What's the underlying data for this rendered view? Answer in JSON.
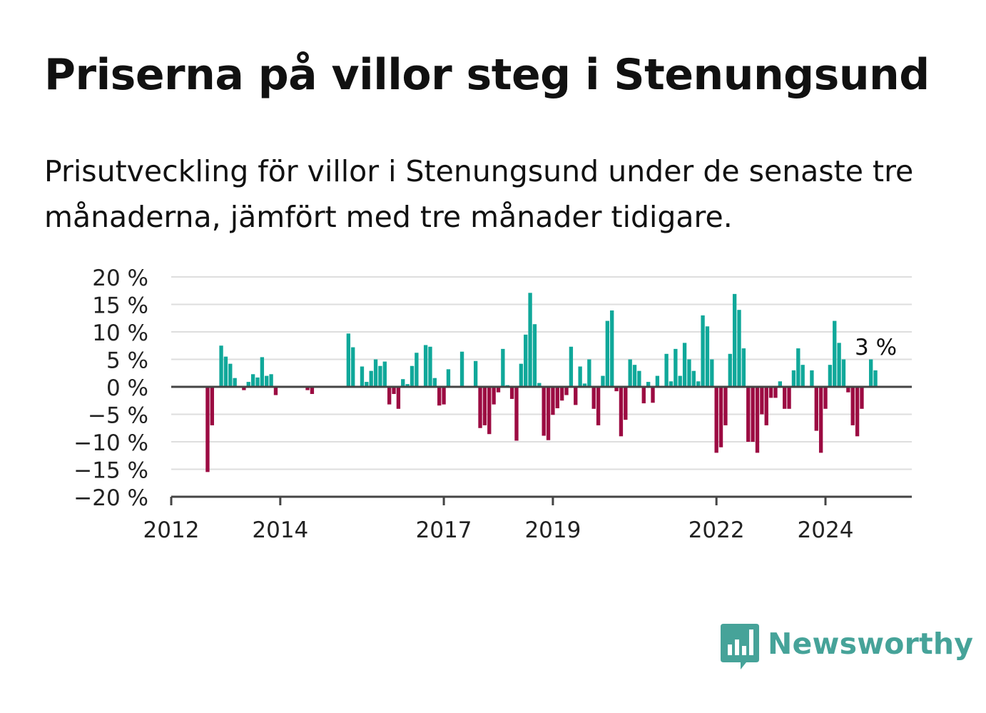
{
  "title": "Priserna på villor steg i Stenungsund",
  "subtitle": "Prisutveckling för villor i Stenungsund under de senaste tre månaderna, jämfört med tre månader tidigare.",
  "brand": {
    "name": "Newsworthy",
    "icon": "newsworthy-logo-icon"
  },
  "colors": {
    "positive": "#10a89a",
    "negative": "#9c0b42",
    "grid": "#dedede",
    "axis": "#444444",
    "text": "#222222"
  },
  "chart_data": {
    "type": "bar",
    "title": "Priserna på villor steg i Stenungsund",
    "xlabel": "",
    "ylabel": "",
    "ylim": [
      -20,
      20
    ],
    "xlim": [
      "2012-01",
      "2025-08"
    ],
    "grid": true,
    "yticks": [
      "−20 %",
      "−15 %",
      "−10 %",
      "−5 %",
      "0 %",
      "5 %",
      "10 %",
      "15 %",
      "20 %"
    ],
    "ytick_values": [
      -20,
      -15,
      -10,
      -5,
      0,
      5,
      10,
      15,
      20
    ],
    "xticks": [
      {
        "label": "2012",
        "date": "2012-01"
      },
      {
        "label": "2014",
        "date": "2014-01"
      },
      {
        "label": "2017",
        "date": "2017-01"
      },
      {
        "label": "2019",
        "date": "2019-01"
      },
      {
        "label": "2022",
        "date": "2022-01"
      },
      {
        "label": "2024",
        "date": "2024-01"
      }
    ],
    "annotation": {
      "text": "3 %",
      "date": "2024-12",
      "value": 3
    },
    "series": [
      {
        "values": [
          {
            "date": "2012-09",
            "value": -15.5
          },
          {
            "date": "2012-10",
            "value": -7
          },
          {
            "date": "2012-12",
            "value": 7.5
          },
          {
            "date": "2013-01",
            "value": 5.5
          },
          {
            "date": "2013-02",
            "value": 4.2
          },
          {
            "date": "2013-03",
            "value": 1.6
          },
          {
            "date": "2013-05",
            "value": -0.6
          },
          {
            "date": "2013-06",
            "value": 0.9
          },
          {
            "date": "2013-07",
            "value": 2.3
          },
          {
            "date": "2013-08",
            "value": 1.7
          },
          {
            "date": "2013-09",
            "value": 5.4
          },
          {
            "date": "2013-10",
            "value": 2.0
          },
          {
            "date": "2013-11",
            "value": 2.3
          },
          {
            "date": "2013-12",
            "value": -1.5
          },
          {
            "date": "2014-07",
            "value": -0.6
          },
          {
            "date": "2014-08",
            "value": -1.3
          },
          {
            "date": "2015-04",
            "value": 9.7
          },
          {
            "date": "2015-05",
            "value": 7.2
          },
          {
            "date": "2015-07",
            "value": 3.7
          },
          {
            "date": "2015-08",
            "value": 0.9
          },
          {
            "date": "2015-09",
            "value": 2.9
          },
          {
            "date": "2015-10",
            "value": 5.0
          },
          {
            "date": "2015-11",
            "value": 3.8
          },
          {
            "date": "2015-12",
            "value": 4.6
          },
          {
            "date": "2016-01",
            "value": -3.2
          },
          {
            "date": "2016-02",
            "value": -1.3
          },
          {
            "date": "2016-03",
            "value": -4.0
          },
          {
            "date": "2016-04",
            "value": 1.4
          },
          {
            "date": "2016-05",
            "value": 0.5
          },
          {
            "date": "2016-06",
            "value": 3.8
          },
          {
            "date": "2016-07",
            "value": 6.2
          },
          {
            "date": "2016-09",
            "value": 7.6
          },
          {
            "date": "2016-10",
            "value": 7.3
          },
          {
            "date": "2016-11",
            "value": 1.6
          },
          {
            "date": "2016-12",
            "value": -3.4
          },
          {
            "date": "2017-01",
            "value": -3.2
          },
          {
            "date": "2017-02",
            "value": 3.2
          },
          {
            "date": "2017-05",
            "value": 6.4
          },
          {
            "date": "2017-08",
            "value": 4.7
          },
          {
            "date": "2017-09",
            "value": -7.5
          },
          {
            "date": "2017-10",
            "value": -7.0
          },
          {
            "date": "2017-11",
            "value": -8.6
          },
          {
            "date": "2017-12",
            "value": -3.2
          },
          {
            "date": "2018-01",
            "value": -1.0
          },
          {
            "date": "2018-02",
            "value": 6.9
          },
          {
            "date": "2018-03",
            "value": 0.3
          },
          {
            "date": "2018-04",
            "value": -2.2
          },
          {
            "date": "2018-05",
            "value": -9.8
          },
          {
            "date": "2018-06",
            "value": 4.2
          },
          {
            "date": "2018-07",
            "value": 9.5
          },
          {
            "date": "2018-08",
            "value": 17.1
          },
          {
            "date": "2018-09",
            "value": 11.4
          },
          {
            "date": "2018-10",
            "value": 0.7
          },
          {
            "date": "2018-11",
            "value": -8.9
          },
          {
            "date": "2018-12",
            "value": -9.7
          },
          {
            "date": "2019-01",
            "value": -5.1
          },
          {
            "date": "2019-02",
            "value": -3.9
          },
          {
            "date": "2019-03",
            "value": -2.5
          },
          {
            "date": "2019-04",
            "value": -1.5
          },
          {
            "date": "2019-05",
            "value": 7.3
          },
          {
            "date": "2019-06",
            "value": -3.3
          },
          {
            "date": "2019-07",
            "value": 3.7
          },
          {
            "date": "2019-08",
            "value": 0.6
          },
          {
            "date": "2019-09",
            "value": 5.0
          },
          {
            "date": "2019-10",
            "value": -4.0
          },
          {
            "date": "2019-11",
            "value": -7.0
          },
          {
            "date": "2019-12",
            "value": 2.0
          },
          {
            "date": "2020-01",
            "value": 12.0
          },
          {
            "date": "2020-02",
            "value": 13.9
          },
          {
            "date": "2020-03",
            "value": -0.8
          },
          {
            "date": "2020-04",
            "value": -9.0
          },
          {
            "date": "2020-05",
            "value": -6.0
          },
          {
            "date": "2020-06",
            "value": 5.0
          },
          {
            "date": "2020-07",
            "value": 4.0
          },
          {
            "date": "2020-08",
            "value": 2.9
          },
          {
            "date": "2020-09",
            "value": -3.0
          },
          {
            "date": "2020-10",
            "value": 0.9
          },
          {
            "date": "2020-11",
            "value": -2.9
          },
          {
            "date": "2020-12",
            "value": 2.0
          },
          {
            "date": "2021-02",
            "value": 6.0
          },
          {
            "date": "2021-03",
            "value": 1.0
          },
          {
            "date": "2021-04",
            "value": 6.9
          },
          {
            "date": "2021-05",
            "value": 2.0
          },
          {
            "date": "2021-06",
            "value": 8.0
          },
          {
            "date": "2021-07",
            "value": 5.0
          },
          {
            "date": "2021-08",
            "value": 2.9
          },
          {
            "date": "2021-09",
            "value": 1.0
          },
          {
            "date": "2021-10",
            "value": 13.0
          },
          {
            "date": "2021-11",
            "value": 11.0
          },
          {
            "date": "2021-12",
            "value": 5.0
          },
          {
            "date": "2022-01",
            "value": -12.0
          },
          {
            "date": "2022-02",
            "value": -11.0
          },
          {
            "date": "2022-03",
            "value": -7.0
          },
          {
            "date": "2022-04",
            "value": 6.0
          },
          {
            "date": "2022-05",
            "value": 16.9
          },
          {
            "date": "2022-06",
            "value": 14.0
          },
          {
            "date": "2022-07",
            "value": 7.0
          },
          {
            "date": "2022-08",
            "value": -10.0
          },
          {
            "date": "2022-09",
            "value": -10.0
          },
          {
            "date": "2022-10",
            "value": -12.0
          },
          {
            "date": "2022-11",
            "value": -5.0
          },
          {
            "date": "2022-12",
            "value": -7.0
          },
          {
            "date": "2023-01",
            "value": -2.0
          },
          {
            "date": "2023-02",
            "value": -2.0
          },
          {
            "date": "2023-03",
            "value": 1.0
          },
          {
            "date": "2023-04",
            "value": -4.0
          },
          {
            "date": "2023-05",
            "value": -4.0
          },
          {
            "date": "2023-06",
            "value": 3.0
          },
          {
            "date": "2023-07",
            "value": 7.0
          },
          {
            "date": "2023-08",
            "value": 4.0
          },
          {
            "date": "2023-10",
            "value": 3.0
          },
          {
            "date": "2023-11",
            "value": -8.0
          },
          {
            "date": "2023-12",
            "value": -12.0
          },
          {
            "date": "2024-01",
            "value": -4.0
          },
          {
            "date": "2024-02",
            "value": 4.0
          },
          {
            "date": "2024-03",
            "value": 12.0
          },
          {
            "date": "2024-04",
            "value": 8.0
          },
          {
            "date": "2024-05",
            "value": 5.0
          },
          {
            "date": "2024-06",
            "value": -1.0
          },
          {
            "date": "2024-07",
            "value": -7.0
          },
          {
            "date": "2024-08",
            "value": -9.0
          },
          {
            "date": "2024-09",
            "value": -4.0
          },
          {
            "date": "2024-11",
            "value": 5.0
          },
          {
            "date": "2024-12",
            "value": 3.0
          }
        ]
      }
    ]
  }
}
